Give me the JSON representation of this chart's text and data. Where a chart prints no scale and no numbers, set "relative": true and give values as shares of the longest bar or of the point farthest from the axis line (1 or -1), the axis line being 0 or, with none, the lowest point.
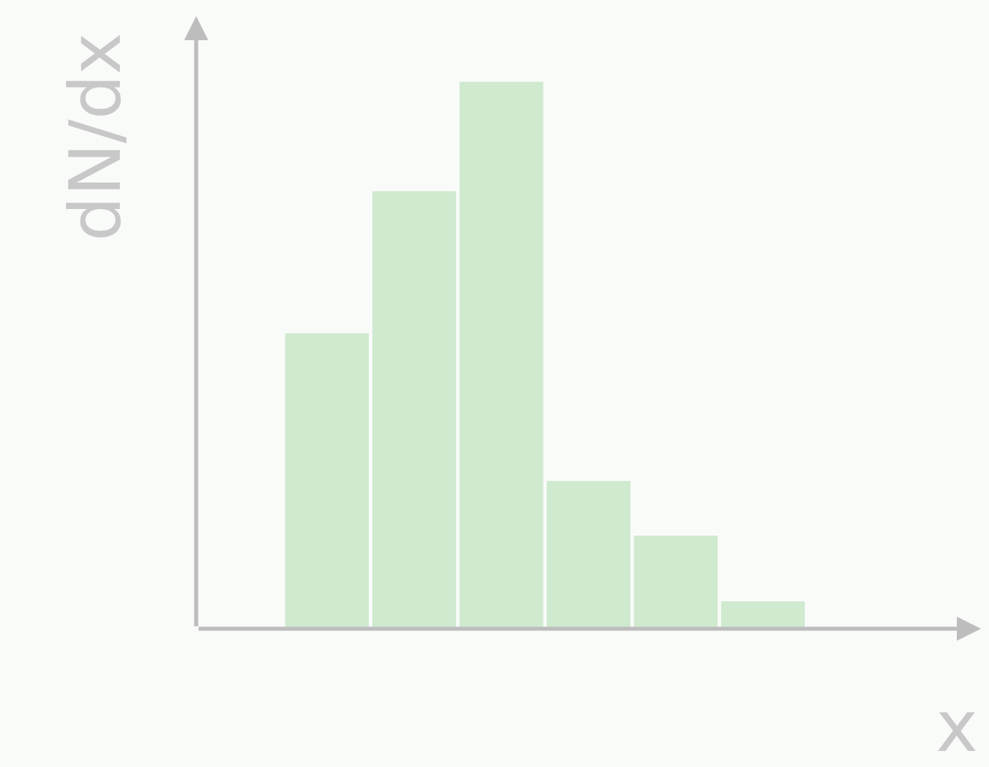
{
  "chart_data": {
    "type": "bar",
    "relative": true,
    "xlabel": "x",
    "ylabel": "dN/dx",
    "categories": [
      null,
      null,
      null,
      null,
      null,
      null
    ],
    "values": [
      0.54,
      0.8,
      1,
      0.27,
      0.17,
      0.05
    ],
    "color": "#cfeacf",
    "grid": false,
    "legend": false
  }
}
